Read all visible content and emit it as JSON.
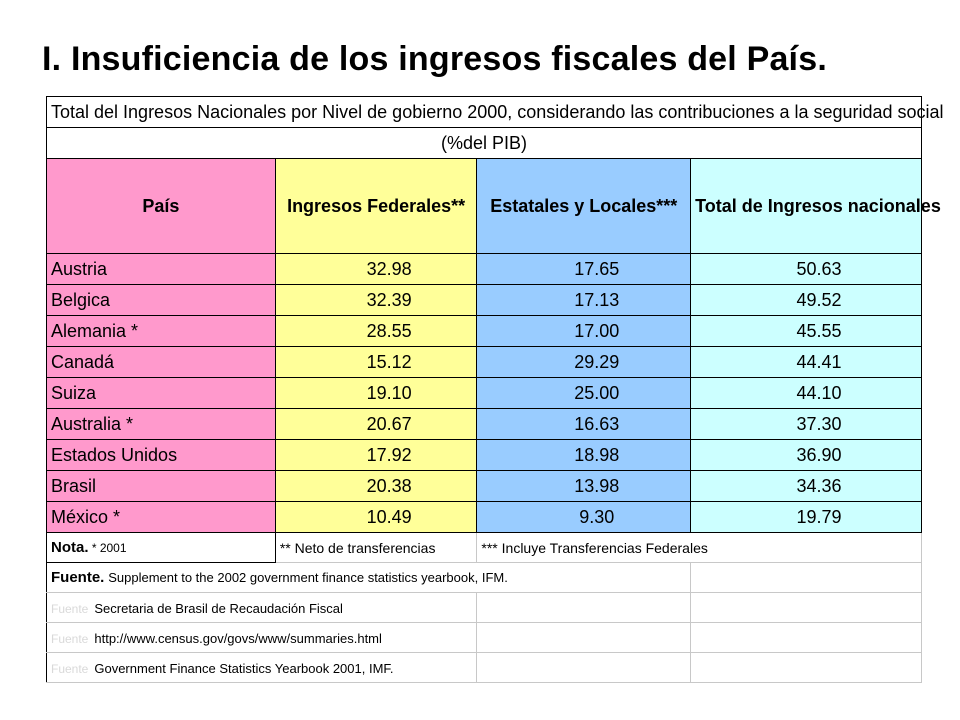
{
  "slide": {
    "title": "I. Insuficiencia de los ingresos fiscales del País."
  },
  "table": {
    "title": "Total del Ingresos  Nacionales por Nivel de gobierno 2000, considerando las contribuciones a la seguridad social",
    "unit": "(%del PIB)",
    "headers": {
      "country": "País",
      "federal": "Ingresos Federales**",
      "state_local": "Estatales y Locales***",
      "total": "Total de Ingresos nacionales"
    },
    "header_colors": {
      "country": "#ff99cc",
      "federal": "#ffff99",
      "state_local": "#99ccff",
      "total": "#ccffff"
    },
    "rows": [
      {
        "country": "Austria",
        "federal": "32.98",
        "state_local": "17.65",
        "total": "50.63"
      },
      {
        "country": "Belgica",
        "federal": "32.39",
        "state_local": "17.13",
        "total": "49.52"
      },
      {
        "country": "Alemania  *",
        "federal": "28.55",
        "state_local": "17.00",
        "total": "45.55"
      },
      {
        "country": "Canadá",
        "federal": "15.12",
        "state_local": "29.29",
        "total": "44.41"
      },
      {
        "country": "Suiza",
        "federal": "19.10",
        "state_local": "25.00",
        "total": "44.10"
      },
      {
        "country": "Australia *",
        "federal": "20.67",
        "state_local": "16.63",
        "total": "37.30"
      },
      {
        "country": "Estados Unidos",
        "federal": "17.92",
        "state_local": "18.98",
        "total": "36.90"
      },
      {
        "country": "Brasil",
        "federal": "20.38",
        "state_local": "13.98",
        "total": "34.36"
      },
      {
        "country": "México *",
        "federal": "10.49",
        "state_local": "9.30",
        "total": "19.79"
      }
    ],
    "note": {
      "label": "Nota.",
      "star": " * 2001",
      "double_star": "** Neto de transferencias",
      "triple_star": "*** Incluye Transferencias Federales"
    },
    "sources": {
      "label": "Fuente.",
      "items": [
        {
          "prefix": "",
          "text": "Supplement to the 2002 government finance statistics yearbook, IFM."
        },
        {
          "prefix": "Fuente",
          "text": "Secretaria de Brasil de Recaudación Fiscal"
        },
        {
          "prefix": "Fuente",
          "text": "http://www.census.gov/govs/www/summaries.html"
        },
        {
          "prefix": "Fuente",
          "text": "Government Finance Statistics Yearbook 2001, IMF."
        }
      ]
    }
  }
}
